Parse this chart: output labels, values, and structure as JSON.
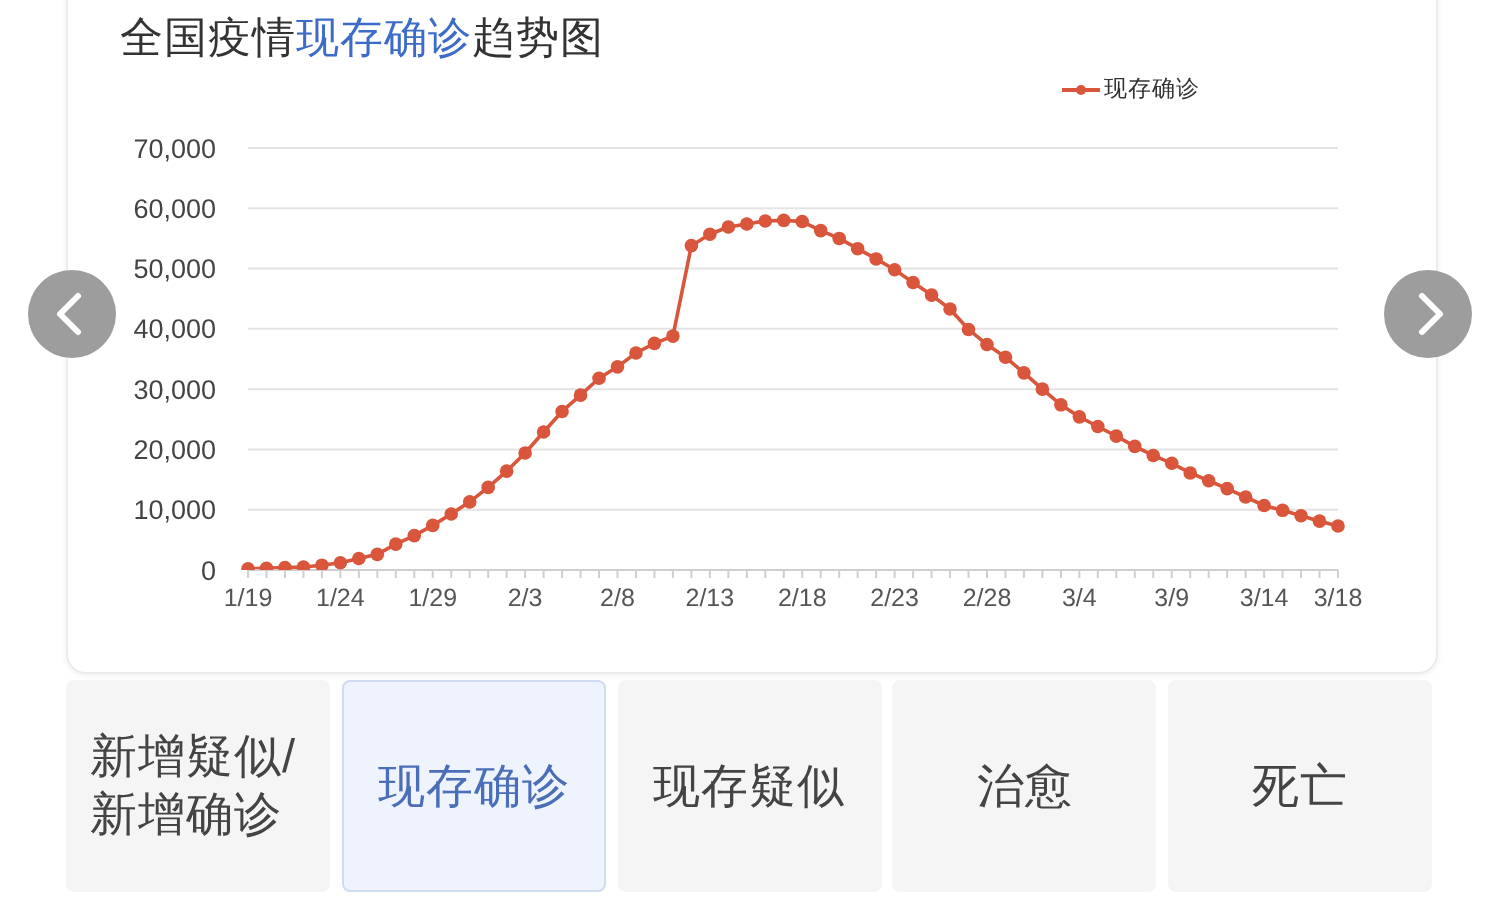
{
  "chart_data": {
    "type": "line",
    "title": "全国疫情现存确诊趋势图",
    "categories": [
      "1/19",
      null,
      null,
      null,
      null,
      "1/24",
      null,
      null,
      null,
      null,
      "1/29",
      null,
      null,
      null,
      null,
      "2/3",
      null,
      null,
      null,
      null,
      "2/8",
      null,
      null,
      null,
      null,
      "2/13",
      null,
      null,
      null,
      null,
      "2/18",
      null,
      null,
      null,
      null,
      "2/23",
      null,
      null,
      null,
      null,
      "2/28",
      null,
      null,
      null,
      null,
      "3/4",
      null,
      null,
      null,
      null,
      "3/9",
      null,
      null,
      null,
      null,
      "3/14",
      null,
      null,
      null,
      "3/18"
    ],
    "series": [
      {
        "name": "现存确诊",
        "color": "#d9553b",
        "values": [
          200,
          300,
          400,
          500,
          800,
          1200,
          1900,
          2600,
          4300,
          5700,
          7400,
          9300,
          11300,
          13700,
          16400,
          19400,
          22900,
          26300,
          29000,
          31800,
          33700,
          36000,
          37600,
          38800,
          53800,
          55700,
          56900,
          57400,
          57900,
          58000,
          57800,
          56300,
          55000,
          53300,
          51600,
          49800,
          47700,
          45600,
          43300,
          39900,
          37400,
          35300,
          32700,
          30000,
          27400,
          25400,
          23800,
          22200,
          20500,
          19000,
          17700,
          16100,
          14800,
          13500,
          12100,
          10700,
          9900,
          9000,
          8100,
          7300
        ]
      }
    ],
    "ylim": [
      0,
      70000
    ],
    "yticks": [
      0,
      {
        "value": 10000,
        "label": "10,000"
      },
      {
        "value": 20000,
        "label": "20,000"
      },
      {
        "value": 30000,
        "label": "30,000"
      },
      {
        "value": 40000,
        "label": "40,000"
      },
      {
        "value": 50000,
        "label": "50,000"
      },
      {
        "value": 60000,
        "label": "60,000"
      },
      {
        "value": 70000,
        "label": "70,000"
      }
    ],
    "grid": "y",
    "legend": "top right",
    "marker": "circle",
    "line_style": "solid",
    "annotations": [
      "新增疑似/新增确诊",
      "现存确诊",
      "现存疑似",
      "治愈",
      "死亡"
    ]
  }
}
